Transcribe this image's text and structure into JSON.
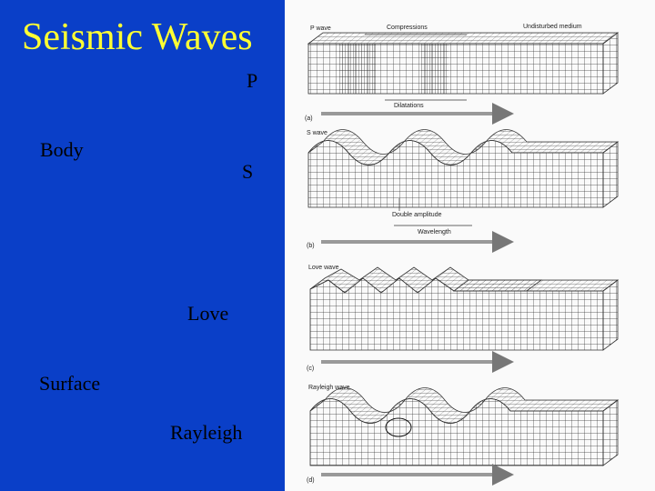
{
  "slide": {
    "title": "Seismic Waves",
    "labels": {
      "p": "P",
      "body": "Body",
      "s": "S",
      "love": "Love",
      "surface": "Surface",
      "rayleigh": "Rayleigh"
    }
  },
  "figure": {
    "p_wave": {
      "title": "P wave",
      "compressions": "Compressions",
      "undisturbed": "Undisturbed medium",
      "dilatations": "Dilatations",
      "panel": "(a)"
    },
    "s_wave": {
      "title": "S wave",
      "double_amplitude": "Double amplitude",
      "wavelength": "Wavelength",
      "panel": "(b)"
    },
    "love_wave": {
      "title": "Love wave",
      "panel": "(c)"
    },
    "rayleigh_wave": {
      "title": "Rayleigh wave",
      "panel": "(d)"
    }
  },
  "colors": {
    "background": "#0a3fc8",
    "title": "#ffff33",
    "text": "#000000"
  }
}
